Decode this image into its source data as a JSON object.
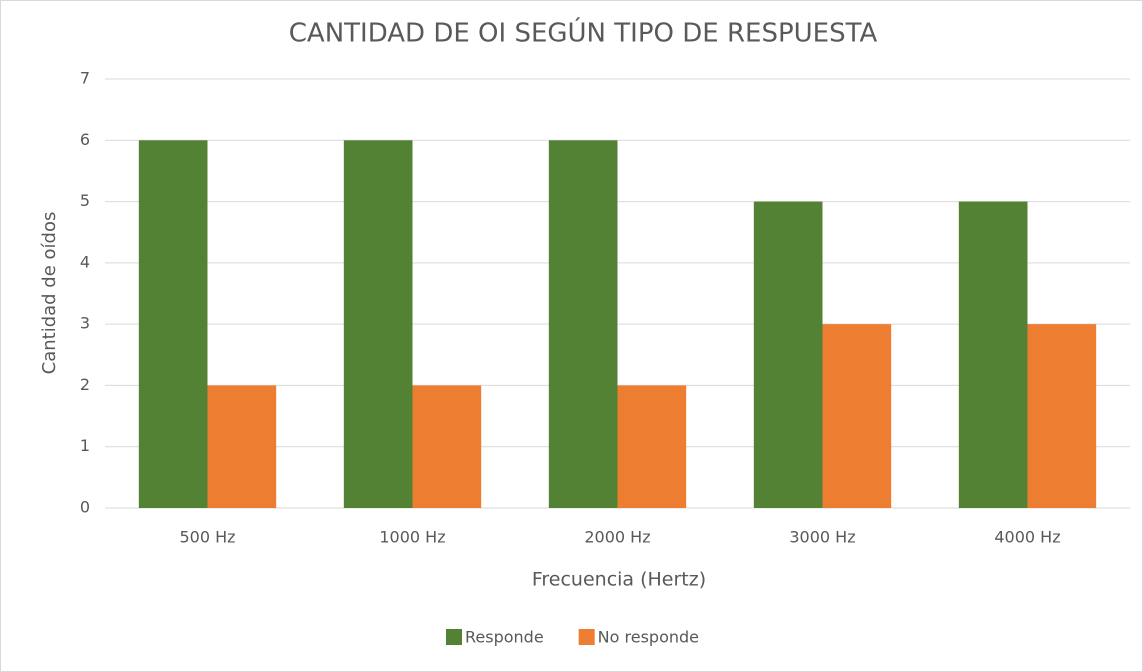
{
  "chart_data": {
    "type": "bar",
    "title": "CANTIDAD DE OI SEGÚN TIPO DE RESPUESTA",
    "x_label": "Frecuencia (Hertz)",
    "y_label": "Cantidad de oídos",
    "categories": [
      "500 Hz",
      "1000 Hz",
      "2000 Hz",
      "3000 Hz",
      "4000 Hz"
    ],
    "series": [
      {
        "name": "Responde",
        "color": "#548235",
        "values": [
          6,
          6,
          6,
          5,
          5
        ]
      },
      {
        "name": "No responde",
        "color": "#ed7d31",
        "values": [
          2,
          2,
          2,
          3,
          3
        ]
      }
    ],
    "ylim": [
      0,
      7
    ],
    "yticks": [
      0,
      1,
      2,
      3,
      4,
      5,
      6,
      7
    ],
    "grid": true,
    "legend": "bottom"
  }
}
